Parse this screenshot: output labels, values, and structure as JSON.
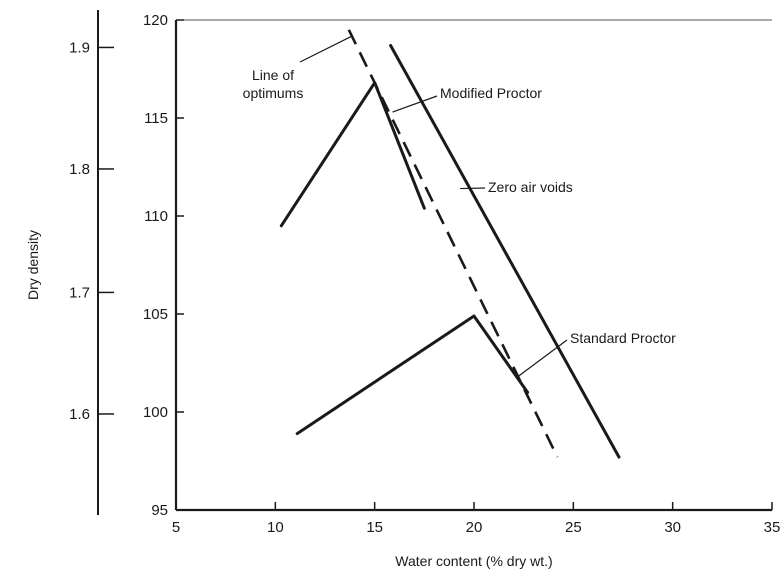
{
  "chart_data": {
    "type": "line",
    "xlabel": "Water content (% dry wt.)",
    "ylabel": "Dry density",
    "xlim": [
      5,
      35
    ],
    "ylim": [
      95,
      120
    ],
    "x_ticks": [
      "5",
      "10",
      "15",
      "20",
      "25",
      "30",
      "35"
    ],
    "y_ticks": [
      "95",
      "100",
      "105",
      "110",
      "115",
      "120"
    ],
    "secondary_y_ticks": [
      {
        "label": "1.9",
        "value": 118.6
      },
      {
        "label": "1.8",
        "value": 112.4
      },
      {
        "label": "1.7",
        "value": 106.1
      },
      {
        "label": "1.6",
        "value": 99.9
      }
    ],
    "grid": false,
    "series": [
      {
        "name": "Modified Proctor",
        "style": "solid",
        "x": [
          10.3,
          15.0,
          17.5
        ],
        "y": [
          109.5,
          116.8,
          110.4
        ]
      },
      {
        "name": "Standard Proctor",
        "style": "solid",
        "x": [
          11.1,
          20.0,
          22.7
        ],
        "y": [
          98.9,
          104.9,
          101.0
        ]
      },
      {
        "name": "Zero air voids",
        "style": "solid",
        "x": [
          15.8,
          27.3
        ],
        "y": [
          118.7,
          97.7
        ]
      },
      {
        "name": "Line of optimums",
        "style": "dashed",
        "x": [
          13.7,
          24.2
        ],
        "y": [
          119.5,
          97.7
        ]
      }
    ],
    "annotations": [
      {
        "lines": [
          "Line of",
          "optimums"
        ],
        "target": [
          13.9,
          119.2
        ]
      },
      {
        "lines": [
          "Modified Proctor"
        ],
        "target": [
          15.9,
          115.3
        ]
      },
      {
        "lines": [
          "Zero air voids"
        ],
        "target": [
          19.3,
          111.4
        ]
      },
      {
        "lines": [
          "Standard Proctor"
        ],
        "target": [
          22.2,
          101.8
        ]
      }
    ]
  }
}
